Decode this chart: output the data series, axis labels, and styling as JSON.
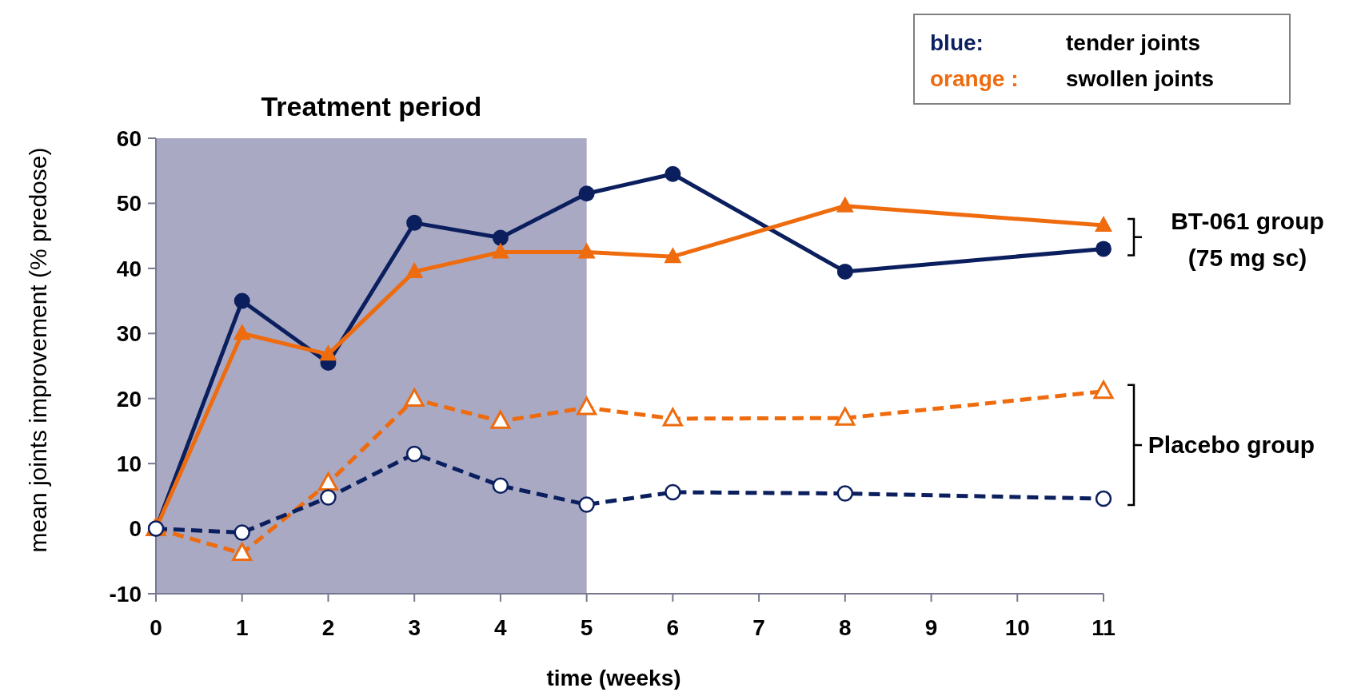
{
  "chart_data": {
    "type": "line",
    "xlabel": "time (weeks)",
    "ylabel": "mean joints  improvement  (% predose)",
    "x": [
      0,
      1,
      2,
      3,
      4,
      5,
      6,
      8,
      11
    ],
    "xlim": [
      0,
      11
    ],
    "xticks": [
      0,
      1,
      2,
      3,
      4,
      5,
      6,
      7,
      8,
      9,
      10,
      11
    ],
    "ylim": [
      -10,
      60
    ],
    "yticks": [
      -10,
      0,
      10,
      20,
      30,
      40,
      50,
      60
    ],
    "grid": false,
    "series": [
      {
        "color": "#0b1f5e",
        "marker": "circle",
        "line_style": "solid",
        "values": [
          0,
          35,
          25.5,
          47,
          44.7,
          51.5,
          54.5,
          39.5,
          43
        ]
      },
      {
        "color": "#ee6b0e",
        "marker": "triangle",
        "line_style": "solid",
        "values": [
          0,
          30,
          26.8,
          39.5,
          42.5,
          42.5,
          41.8,
          49.6,
          46.6
        ]
      },
      {
        "color": "#ee6b0e",
        "marker": "triangle",
        "line_style": "dashed",
        "values": [
          0,
          -3.8,
          7,
          19.9,
          16.5,
          18.6,
          16.9,
          17,
          21.1
        ]
      },
      {
        "color": "#0b1f5e",
        "marker": "circle",
        "line_style": "dashed",
        "values": [
          0,
          -0.6,
          4.8,
          11.5,
          6.6,
          3.7,
          5.6,
          5.4,
          4.6
        ]
      }
    ],
    "bands": [
      {
        "axis": "x",
        "from": 0,
        "to": 5,
        "label": "Treatment period",
        "color": "#a9a9c4"
      }
    ],
    "annotations": [
      "BT-061 group\n(75 mg sc)",
      "Placebo group",
      "blue:",
      "tender joints",
      "orange :",
      "swollen joints"
    ]
  }
}
